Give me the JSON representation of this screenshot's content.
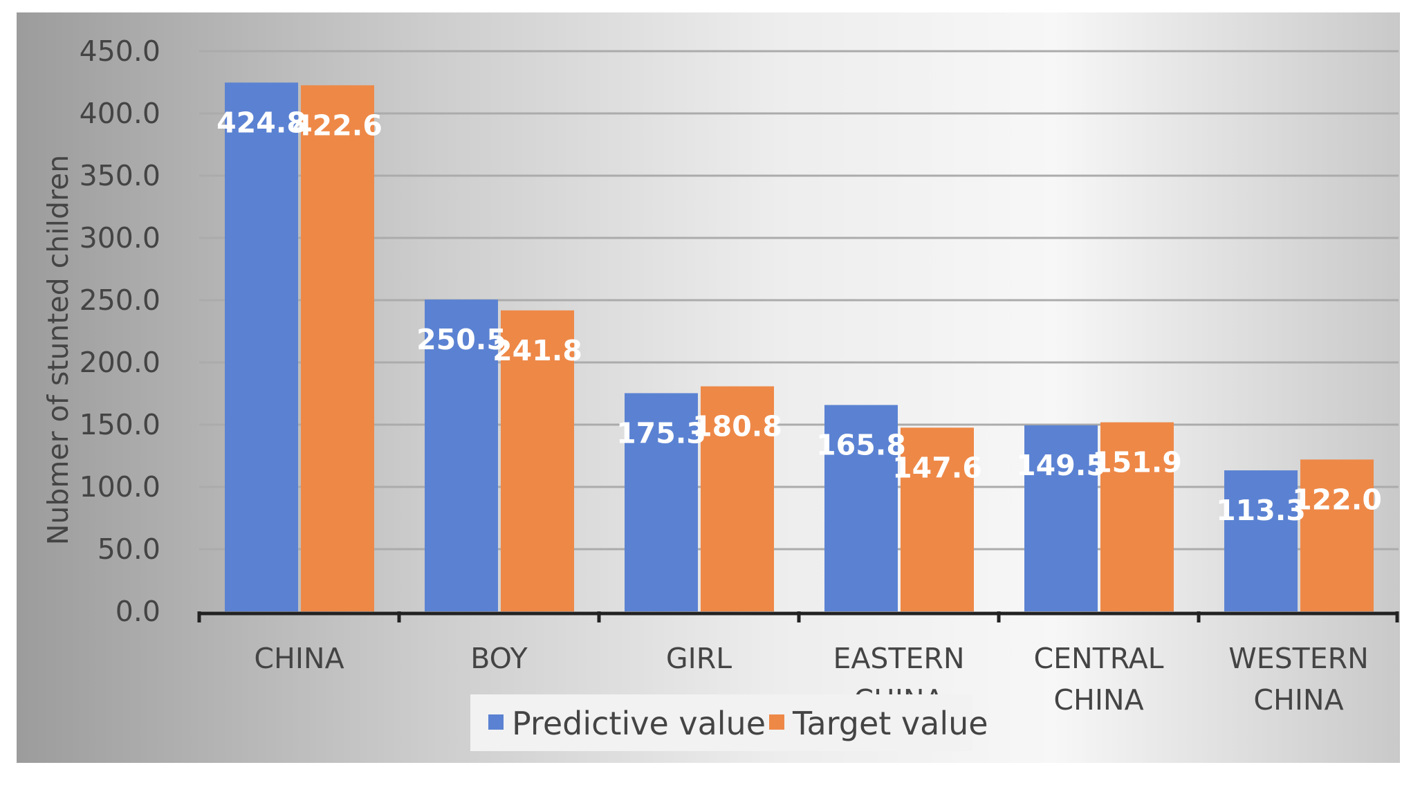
{
  "chart_data": {
    "type": "bar",
    "title": "",
    "xlabel": "",
    "ylabel": "Nubmer of stunted children",
    "ylim": [
      0,
      450
    ],
    "ytick_step": 50,
    "ytick_labels": [
      "0.0",
      "50.0",
      "100.0",
      "150.0",
      "200.0",
      "250.0",
      "300.0",
      "350.0",
      "400.0",
      "450.0"
    ],
    "grid": true,
    "legend_position": "bottom",
    "categories": [
      [
        "CHINA"
      ],
      [
        "BOY"
      ],
      [
        "GIRL"
      ],
      [
        "EASTERN",
        "CHINA"
      ],
      [
        "CENTRAL",
        "CHINA"
      ],
      [
        "WESTERN",
        "CHINA"
      ]
    ],
    "series": [
      {
        "name": "Predictive value",
        "color": "#5b82d2",
        "values": [
          424.8,
          250.5,
          175.3,
          165.8,
          149.5,
          113.3
        ],
        "labels": [
          "424.8",
          "250.5",
          "175.3",
          "165.8",
          "149.5",
          "113.3"
        ]
      },
      {
        "name": "Target value",
        "color": "#ee8847",
        "values": [
          422.6,
          241.8,
          180.8,
          147.6,
          151.9,
          122.0
        ],
        "labels": [
          "422.6",
          "241.8",
          "180.8",
          "147.6",
          "151.9",
          "122.0"
        ]
      }
    ]
  }
}
